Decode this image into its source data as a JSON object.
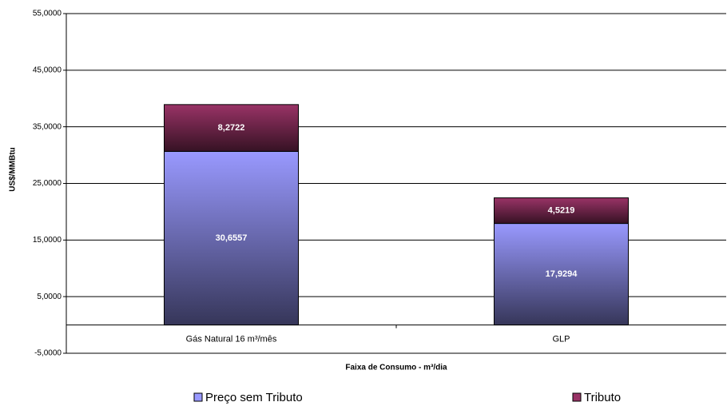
{
  "chart_data": {
    "type": "stacked_bar",
    "categories": [
      "Gás Natural 16 m³/mês",
      "GLP"
    ],
    "series": [
      {
        "name": "Preço sem Tributo",
        "color": "#9999ff",
        "values": [
          30.6557,
          17.9294
        ],
        "value_labels": [
          "30,6557",
          "17,9294"
        ]
      },
      {
        "name": "Tributo",
        "color": "#993366",
        "values": [
          8.2722,
          4.5219
        ],
        "value_labels": [
          "8,2722",
          "4,5219"
        ]
      }
    ],
    "x_label": "Faixa de Consumo - m³/dia",
    "y_label": "US$/MMBtu",
    "ylim": [
      -5,
      55
    ],
    "yticks": [
      {
        "value": -5,
        "label": "-5,0000"
      },
      {
        "value": 5,
        "label": "5,0000"
      },
      {
        "value": 15,
        "label": "15,0000"
      },
      {
        "value": 25,
        "label": "25,0000"
      },
      {
        "value": 35,
        "label": "35,0000"
      },
      {
        "value": 45,
        "label": "45,0000"
      },
      {
        "value": 55,
        "label": "55,0000"
      }
    ],
    "grid": true
  }
}
